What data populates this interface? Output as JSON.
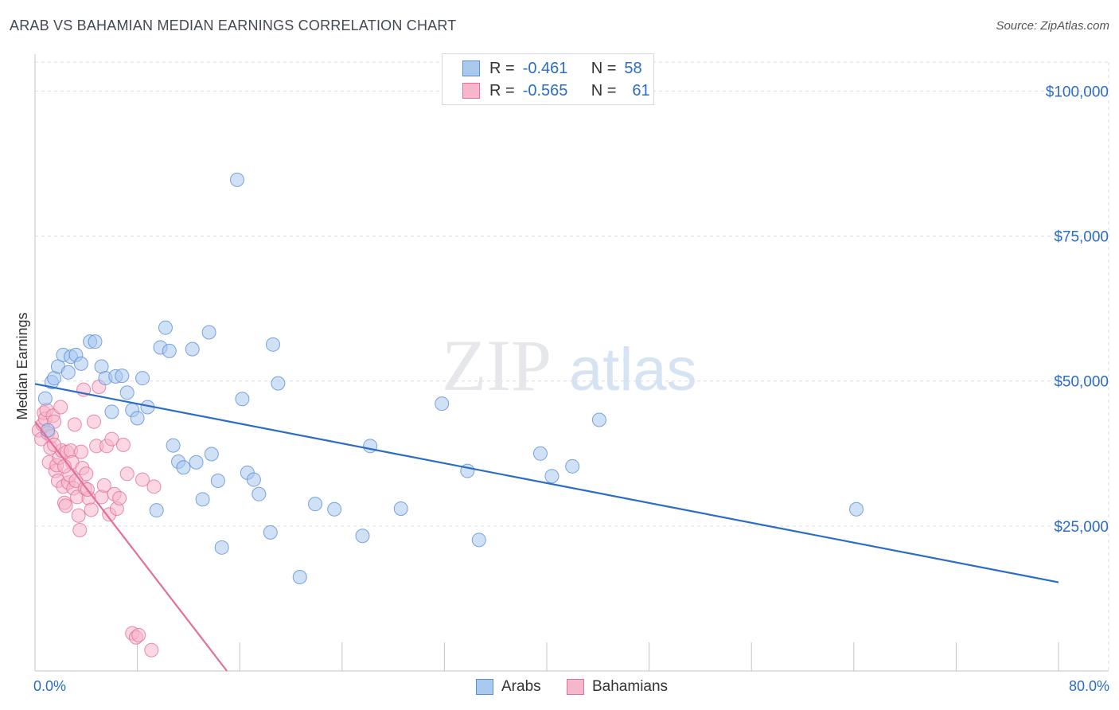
{
  "title": "ARAB VS BAHAMIAN MEDIAN EARNINGS CORRELATION CHART",
  "source": "Source: ZipAtlas.com",
  "watermark": {
    "zip": "ZIP",
    "atlas": "atlas"
  },
  "legend_top": {
    "rows": [
      {
        "r_label": "R =",
        "r_value": "-0.461",
        "n_label": "N =",
        "n_value": "58",
        "color": "#b7d0f0"
      },
      {
        "r_label": "R =",
        "r_value": "-0.565",
        "n_label": "N =",
        "n_value": "61",
        "color": "#f8c3d3"
      }
    ]
  },
  "legend_bottom": {
    "items": [
      {
        "label": "Arabs",
        "color": "#b7d0f0"
      },
      {
        "label": "Bahamians",
        "color": "#f8c3d3"
      }
    ]
  },
  "colors": {
    "arabs_fill": "#a9c9ef",
    "arabs_stroke": "#5a8fd6",
    "arabs_line": "#2b6cc4",
    "bahamians_fill": "#f6b7cb",
    "bahamians_stroke": "#e46f98",
    "bahamians_line": "#e46f98",
    "tick_label": "#2b6cc4",
    "grid": "#d9dde3"
  },
  "chart_data": {
    "type": "scatter",
    "title": "ARAB VS BAHAMIAN MEDIAN EARNINGS CORRELATION CHART",
    "xlabel": "",
    "ylabel": "Median Earnings",
    "xlim": [
      0,
      80
    ],
    "ylim": [
      0,
      105000
    ],
    "x_tick_labels": [
      "0.0%",
      "80.0%"
    ],
    "y_ticks": [
      25000,
      50000,
      75000,
      100000
    ],
    "y_tick_labels": [
      "$25,000",
      "$50,000",
      "$75,000",
      "$100,000"
    ],
    "grid": true,
    "series": [
      {
        "name": "Arabs",
        "points": [
          [
            0.8,
            47000
          ],
          [
            1.0,
            41500
          ],
          [
            1.3,
            49800
          ],
          [
            1.5,
            50500
          ],
          [
            1.8,
            52500
          ],
          [
            2.2,
            54500
          ],
          [
            2.6,
            51500
          ],
          [
            2.8,
            54200
          ],
          [
            3.2,
            54500
          ],
          [
            3.6,
            53000
          ],
          [
            4.3,
            56800
          ],
          [
            4.7,
            56800
          ],
          [
            5.2,
            52500
          ],
          [
            5.5,
            50500
          ],
          [
            6.0,
            44700
          ],
          [
            6.3,
            50800
          ],
          [
            6.8,
            50900
          ],
          [
            7.2,
            48000
          ],
          [
            7.6,
            45000
          ],
          [
            8.0,
            43600
          ],
          [
            8.4,
            50500
          ],
          [
            8.8,
            45500
          ],
          [
            9.5,
            27700
          ],
          [
            9.8,
            55800
          ],
          [
            10.2,
            59200
          ],
          [
            10.5,
            55200
          ],
          [
            10.8,
            38900
          ],
          [
            11.2,
            36100
          ],
          [
            11.6,
            35100
          ],
          [
            12.3,
            55500
          ],
          [
            12.6,
            36000
          ],
          [
            13.1,
            29600
          ],
          [
            13.6,
            58400
          ],
          [
            13.8,
            37400
          ],
          [
            14.3,
            32800
          ],
          [
            14.6,
            21300
          ],
          [
            15.8,
            84700
          ],
          [
            16.2,
            46900
          ],
          [
            16.6,
            34200
          ],
          [
            17.1,
            33000
          ],
          [
            17.5,
            30500
          ],
          [
            18.4,
            23900
          ],
          [
            18.6,
            56300
          ],
          [
            19.0,
            49600
          ],
          [
            20.7,
            16200
          ],
          [
            21.9,
            28800
          ],
          [
            23.4,
            27900
          ],
          [
            25.6,
            23300
          ],
          [
            26.2,
            38800
          ],
          [
            28.6,
            28000
          ],
          [
            31.8,
            46100
          ],
          [
            33.8,
            34500
          ],
          [
            34.7,
            22600
          ],
          [
            39.5,
            37500
          ],
          [
            40.4,
            33600
          ],
          [
            42.0,
            35300
          ],
          [
            44.1,
            43300
          ],
          [
            64.2,
            27900
          ]
        ],
        "trend": {
          "x": [
            0,
            80
          ],
          "y": [
            49500,
            15300
          ]
        }
      },
      {
        "name": "Bahamians",
        "points": [
          [
            0.3,
            41500
          ],
          [
            0.5,
            40000
          ],
          [
            0.6,
            42500
          ],
          [
            0.7,
            44500
          ],
          [
            0.8,
            43500
          ],
          [
            0.9,
            45000
          ],
          [
            1.0,
            41000
          ],
          [
            1.1,
            36000
          ],
          [
            1.2,
            38500
          ],
          [
            1.3,
            40500
          ],
          [
            1.4,
            44000
          ],
          [
            1.5,
            43000
          ],
          [
            1.6,
            34500
          ],
          [
            1.7,
            35500
          ],
          [
            1.8,
            32800
          ],
          [
            1.9,
            36800
          ],
          [
            2.0,
            45500
          ],
          [
            2.1,
            38000
          ],
          [
            2.2,
            31800
          ],
          [
            2.3,
            29000
          ],
          [
            2.4,
            28500
          ],
          [
            2.5,
            37800
          ],
          [
            2.6,
            32500
          ],
          [
            2.7,
            33800
          ],
          [
            2.8,
            38000
          ],
          [
            2.9,
            36000
          ],
          [
            3.0,
            31500
          ],
          [
            3.1,
            42500
          ],
          [
            3.2,
            32800
          ],
          [
            3.3,
            30000
          ],
          [
            3.4,
            26800
          ],
          [
            3.5,
            24300
          ],
          [
            3.6,
            37800
          ],
          [
            3.7,
            35000
          ],
          [
            3.8,
            48500
          ],
          [
            3.9,
            31500
          ],
          [
            4.0,
            34000
          ],
          [
            4.2,
            29800
          ],
          [
            4.4,
            27800
          ],
          [
            4.6,
            43000
          ],
          [
            4.8,
            38800
          ],
          [
            5.0,
            49000
          ],
          [
            5.2,
            30000
          ],
          [
            5.4,
            32000
          ],
          [
            5.6,
            38800
          ],
          [
            5.8,
            27000
          ],
          [
            6.0,
            40000
          ],
          [
            6.2,
            30500
          ],
          [
            6.4,
            28000
          ],
          [
            6.6,
            29800
          ],
          [
            6.9,
            39000
          ],
          [
            7.2,
            34000
          ],
          [
            7.6,
            6500
          ],
          [
            7.9,
            5800
          ],
          [
            8.1,
            6200
          ],
          [
            8.4,
            33000
          ],
          [
            9.1,
            3600
          ],
          [
            9.3,
            31800
          ],
          [
            1.5,
            39000
          ],
          [
            2.3,
            35300
          ],
          [
            4.1,
            31300
          ]
        ],
        "trend": {
          "x": [
            0,
            15
          ],
          "y": [
            43000,
            0
          ]
        }
      }
    ]
  }
}
